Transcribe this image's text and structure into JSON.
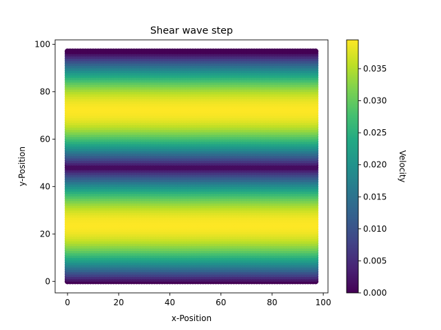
{
  "chart_data": {
    "type": "heatmap",
    "title": "Shear wave step",
    "xlabel": "x-Position",
    "ylabel": "y-Position",
    "xlim": [
      -4.85,
      101.85
    ],
    "ylim": [
      -4.85,
      101.85
    ],
    "x_ticks": [
      0,
      20,
      40,
      60,
      80,
      100
    ],
    "y_ticks": [
      0,
      20,
      40,
      60,
      80,
      100
    ],
    "x_ticklabels": [
      "0",
      "20",
      "40",
      "60",
      "80",
      "100"
    ],
    "y_ticklabels": [
      "0",
      "20",
      "40",
      "60",
      "80",
      "100"
    ],
    "grid": {
      "nx": 98,
      "ny": 98,
      "x_min": 0,
      "x_max": 97,
      "y_min": 0,
      "y_max": 97
    },
    "value_profile": {
      "description": "velocity varies with y only; |sin(2*pi*y/97)| shape",
      "peak_velocity": 0.0395,
      "zero_at_y": [
        0,
        48.5,
        97
      ],
      "max_at_y": [
        24,
        73
      ]
    },
    "colormap": "viridis",
    "colorbar": {
      "label": "Velocity",
      "min": 0.0,
      "max": 0.0395,
      "ticks": [
        0.0,
        0.005,
        0.01,
        0.015,
        0.02,
        0.025,
        0.03,
        0.035
      ],
      "ticklabels": [
        "0.000",
        "0.005",
        "0.010",
        "0.015",
        "0.020",
        "0.025",
        "0.030",
        "0.035"
      ]
    },
    "grid_lines": false,
    "legend": "none"
  }
}
